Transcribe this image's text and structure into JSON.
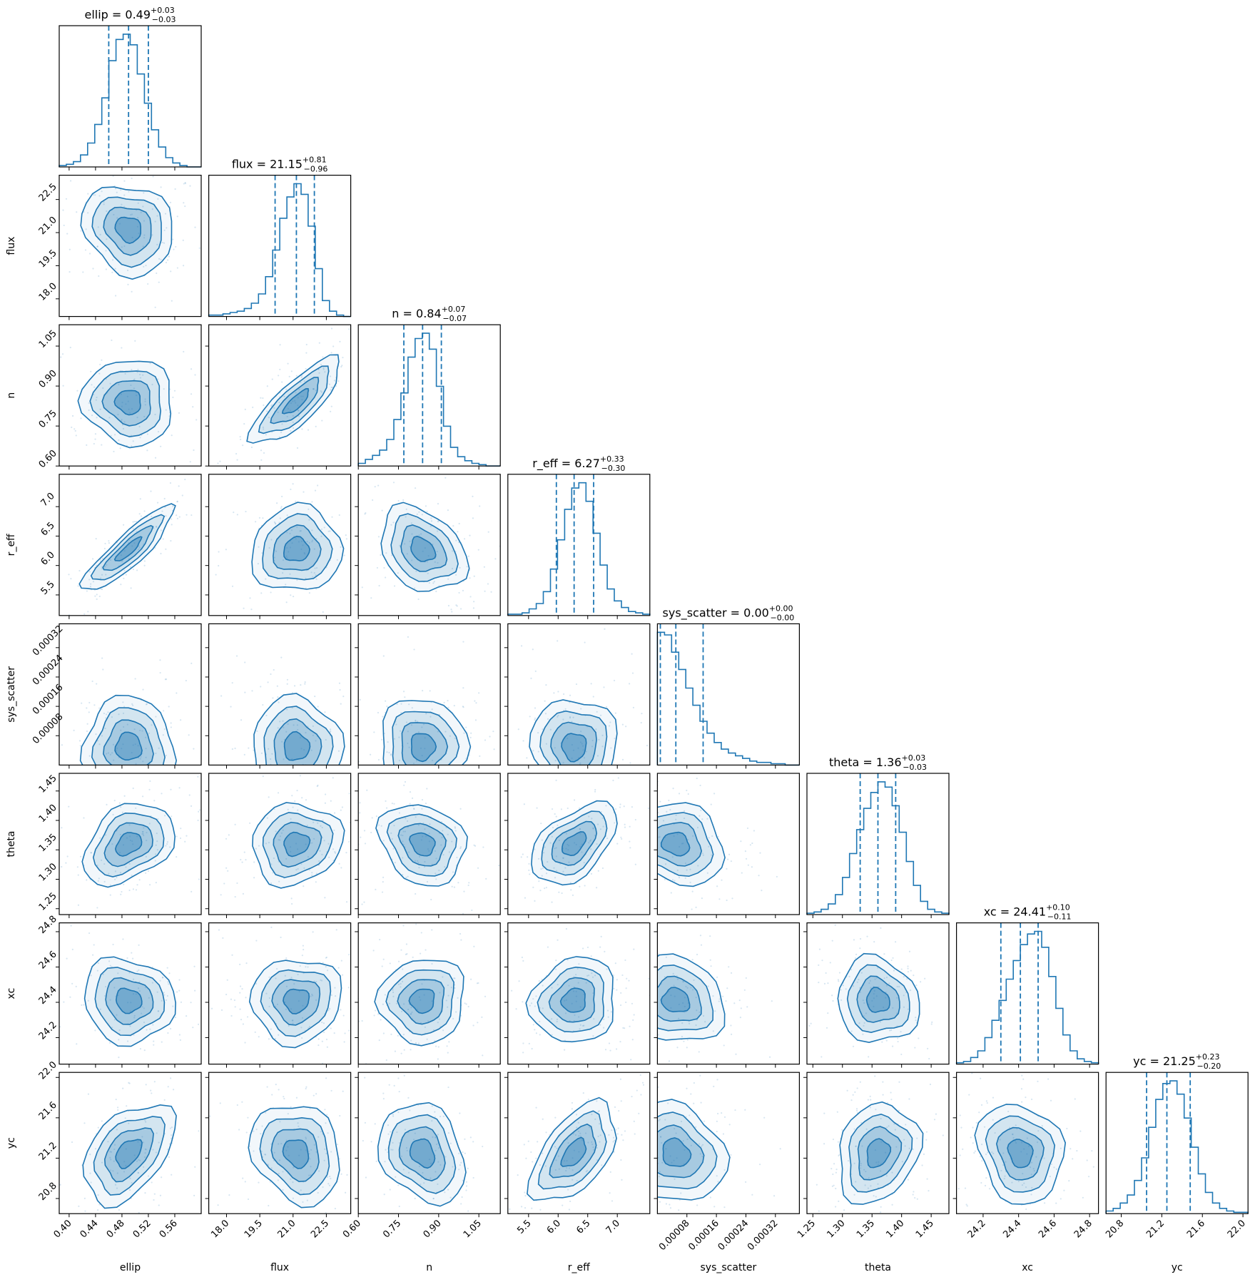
{
  "chart_data": {
    "type": "corner",
    "grid": false,
    "colors": {
      "line": "#1f77b4",
      "frame": "#000000"
    },
    "parameters": [
      {
        "name": "ellip",
        "median": "0.49",
        "plus": "+0.03",
        "minus": "−0.03",
        "lim": [
          0.385,
          0.6
        ],
        "quantiles": [
          0.46,
          0.49,
          0.52
        ],
        "ticks": [
          0.4,
          0.44,
          0.48,
          0.52,
          0.56
        ],
        "tick_labels": [
          "0.40",
          "0.44",
          "0.48",
          "0.52",
          "0.56"
        ]
      },
      {
        "name": "flux",
        "median": "21.15",
        "plus": "+0.81",
        "minus": "−0.96",
        "lim": [
          17.2,
          23.6
        ],
        "quantiles": [
          20.19,
          21.15,
          21.96
        ],
        "ticks": [
          18.0,
          19.5,
          21.0,
          22.5
        ],
        "tick_labels": [
          "18.0",
          "19.5",
          "21.0",
          "22.5"
        ]
      },
      {
        "name": "n",
        "median": "0.84",
        "plus": "+0.07",
        "minus": "−0.07",
        "lim": [
          0.6,
          1.13
        ],
        "quantiles": [
          0.77,
          0.84,
          0.91
        ],
        "ticks": [
          0.6,
          0.75,
          0.9,
          1.05
        ],
        "tick_labels": [
          "0.60",
          "0.75",
          "0.90",
          "1.05"
        ]
      },
      {
        "name": "r_eff",
        "median": "6.27",
        "plus": "+0.33",
        "minus": "−0.30",
        "lim": [
          5.15,
          7.55
        ],
        "quantiles": [
          5.97,
          6.27,
          6.6
        ],
        "ticks": [
          5.5,
          6.0,
          6.5,
          7.0
        ],
        "tick_labels": [
          "5.5",
          "6.0",
          "6.5",
          "7.0"
        ]
      },
      {
        "name": "sys_scatter",
        "median": "0.00",
        "plus": "+0.00",
        "minus": "−0.00",
        "lim": [
          0.0,
          0.000385
        ],
        "quantiles": [
          8e-06,
          5e-05,
          0.000124
        ],
        "ticks": [
          8e-05,
          0.00016,
          0.00024,
          0.00032
        ],
        "tick_labels": [
          "0.00008",
          "0.00016",
          "0.00024",
          "0.00032"
        ]
      },
      {
        "name": "theta",
        "median": "1.36",
        "plus": "+0.03",
        "minus": "−0.03",
        "lim": [
          1.24,
          1.48
        ],
        "quantiles": [
          1.33,
          1.36,
          1.39
        ],
        "ticks": [
          1.25,
          1.3,
          1.35,
          1.4,
          1.45
        ],
        "tick_labels": [
          "1.25",
          "1.30",
          "1.35",
          "1.40",
          "1.45"
        ]
      },
      {
        "name": "xc",
        "median": "24.41",
        "plus": "+0.10",
        "minus": "−0.11",
        "lim": [
          24.05,
          24.85
        ],
        "quantiles": [
          24.3,
          24.41,
          24.51
        ],
        "ticks": [
          24.2,
          24.4,
          24.6,
          24.8
        ],
        "tick_labels": [
          "24.2",
          "24.4",
          "24.6",
          "24.8"
        ]
      },
      {
        "name": "yc",
        "median": "21.25",
        "plus": "+0.23",
        "minus": "−0.20",
        "lim": [
          20.65,
          22.05
        ],
        "quantiles": [
          21.05,
          21.25,
          21.48
        ],
        "ticks": [
          20.8,
          21.2,
          21.6,
          22.0
        ],
        "tick_labels": [
          "20.8",
          "21.2",
          "21.6",
          "22.0"
        ]
      }
    ],
    "histograms": [
      [
        1,
        2,
        4,
        9,
        18,
        32,
        52,
        80,
        96,
        100,
        92,
        70,
        48,
        28,
        15,
        7,
        3,
        1,
        0,
        0
      ],
      [
        1,
        1,
        2,
        3,
        4,
        6,
        10,
        17,
        30,
        50,
        74,
        90,
        100,
        92,
        68,
        36,
        12,
        4,
        1,
        0
      ],
      [
        2,
        5,
        8,
        12,
        20,
        35,
        55,
        82,
        96,
        100,
        88,
        60,
        30,
        14,
        7,
        4,
        2,
        1,
        0,
        0
      ],
      [
        1,
        1,
        2,
        5,
        9,
        18,
        35,
        57,
        80,
        96,
        100,
        86,
        62,
        38,
        20,
        11,
        6,
        3,
        2,
        1
      ],
      [
        100,
        98,
        85,
        72,
        58,
        45,
        33,
        24,
        17,
        12,
        9,
        7,
        5,
        3,
        2,
        2,
        1,
        1,
        0,
        0
      ],
      [
        1,
        2,
        4,
        8,
        15,
        28,
        46,
        64,
        80,
        92,
        100,
        96,
        82,
        62,
        40,
        22,
        10,
        4,
        2,
        1
      ],
      [
        1,
        2,
        5,
        10,
        20,
        33,
        48,
        64,
        78,
        90,
        98,
        100,
        88,
        66,
        42,
        22,
        10,
        4,
        2,
        1
      ],
      [
        2,
        4,
        8,
        14,
        25,
        42,
        65,
        86,
        98,
        100,
        90,
        72,
        50,
        30,
        16,
        8,
        4,
        2,
        1,
        1
      ]
    ],
    "correlations": [
      [
        0,
        0,
        0,
        0,
        0,
        0,
        0,
        0
      ],
      [
        -0.15,
        0,
        0,
        0,
        0,
        0,
        0,
        0
      ],
      [
        -0.05,
        0.8,
        0,
        0,
        0,
        0,
        0,
        0
      ],
      [
        0.88,
        0.05,
        -0.3,
        0,
        0,
        0,
        0,
        0
      ],
      [
        0.0,
        0.0,
        0.0,
        0.0,
        0,
        0,
        0,
        0
      ],
      [
        0.35,
        0.1,
        -0.2,
        0.5,
        -0.15,
        0,
        0,
        0
      ],
      [
        -0.1,
        0.05,
        0.05,
        0.1,
        -0.1,
        -0.1,
        0,
        0
      ],
      [
        0.45,
        -0.2,
        -0.25,
        0.55,
        -0.15,
        0.2,
        -0.15,
        0
      ]
    ]
  }
}
